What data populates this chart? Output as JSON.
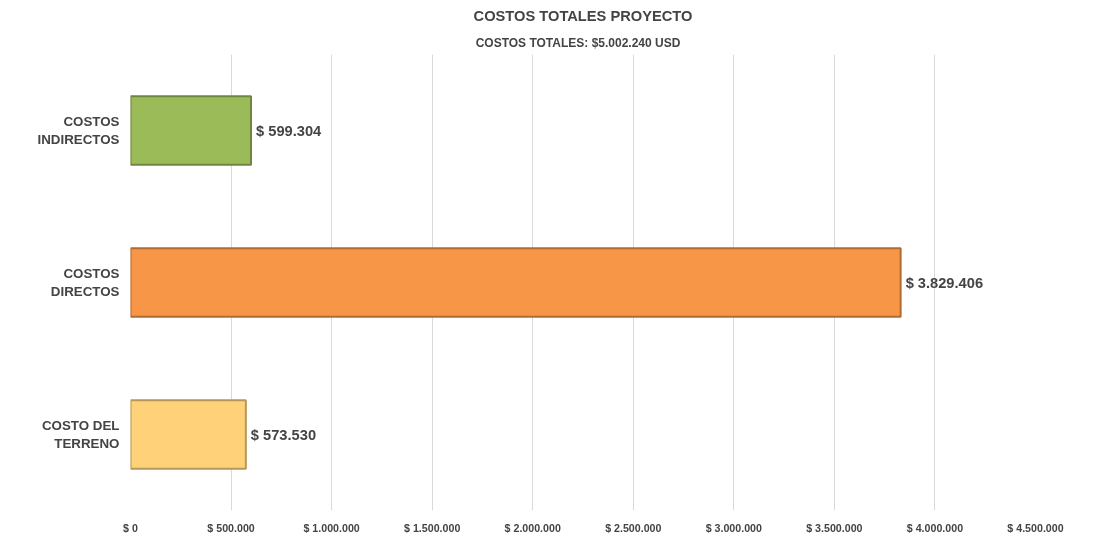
{
  "chart_data": {
    "type": "bar",
    "orientation": "horizontal",
    "title": "COSTOS TOTALES PROYECTO",
    "subtitle": "COSTOS TOTALES:  $5.002.240   USD",
    "categories": [
      "COSTOS INDIRECTOS",
      "COSTOS DIRECTOS",
      "COSTO DEL TERRENO"
    ],
    "values": [
      599304,
      3829406,
      573530
    ],
    "colors": [
      "#9bbb59",
      "#f79646",
      "#ffd27a"
    ],
    "value_labels": [
      "$ 599.304",
      "$ 3.829.406",
      "$ 573.530"
    ],
    "xlim": [
      0,
      4500000
    ],
    "xticks": [
      {
        "value": 0,
        "label": "$ 0"
      },
      {
        "value": 500000,
        "label": "$ 500.000"
      },
      {
        "value": 1000000,
        "label": "$ 1.000.000"
      },
      {
        "value": 1500000,
        "label": "$ 1.500.000"
      },
      {
        "value": 2000000,
        "label": "$ 2.000.000"
      },
      {
        "value": 2500000,
        "label": "$ 2.500.000"
      },
      {
        "value": 3000000,
        "label": "$ 3.000.000"
      },
      {
        "value": 3500000,
        "label": "$ 3.500.000"
      },
      {
        "value": 4000000,
        "label": "$ 4.000.000"
      },
      {
        "value": 4500000,
        "label": "$ 4.500.000"
      }
    ],
    "grid": "x"
  }
}
